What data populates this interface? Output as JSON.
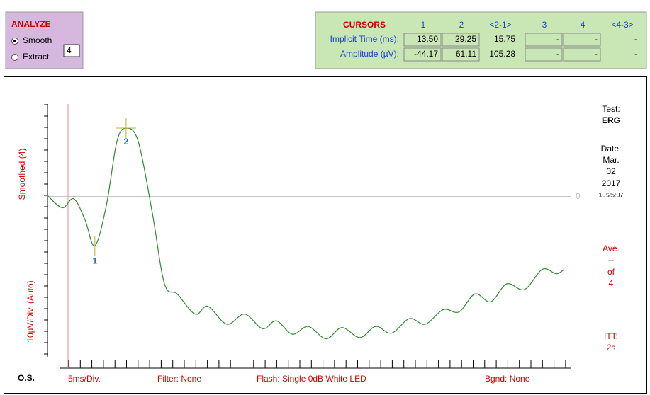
{
  "analyze": {
    "title": "ANALYZE",
    "options": [
      "Smooth",
      "Extract"
    ],
    "selected": "Smooth",
    "smooth_level": "4"
  },
  "cursors": {
    "title": "CURSORS",
    "columns": [
      "1",
      "2",
      "<2-1>",
      "3",
      "4",
      "<4-3>"
    ],
    "rows": [
      {
        "label": "Implicit Time (ms):",
        "values": [
          "13.50",
          "29.25",
          "15.75",
          "-",
          "-",
          "-"
        ]
      },
      {
        "label": "Amplitude (µV):",
        "values": [
          "-44.17",
          "61.11",
          "105.28",
          "-",
          "-",
          "-"
        ]
      }
    ]
  },
  "chart_data": {
    "type": "line",
    "y_label_top": "Smoothed (4)",
    "y_label_bottom": "10µV/Div. (Auto)",
    "x_label": "5ms/Div.",
    "eye": "O.S.",
    "filter": "Filter: None",
    "flash": "Flash: Single 0dB White LED",
    "background": "Bgnd: None",
    "info": [
      "Test:",
      "ERG",
      "Date:",
      "Mar.",
      "02",
      "2017",
      "10:25:07",
      "Ave.",
      "--",
      "of",
      "4",
      "ITT:",
      "2s"
    ],
    "cursor_labels": [
      "1",
      "2"
    ],
    "x": [
      -10.4,
      -2.9,
      2.9,
      8.6,
      13.5,
      19.3,
      24.6,
      29.3,
      35.4,
      42.5,
      48.6,
      55,
      64,
      70.4,
      80,
      89,
      98,
      105,
      113,
      121,
      130,
      138,
      147,
      155,
      163,
      172,
      180,
      189,
      197,
      205,
      213,
      221,
      230,
      239,
      246,
      250
    ],
    "values": [
      1,
      -10,
      -2,
      -21,
      -44,
      -8,
      49,
      61,
      49,
      -15,
      -78,
      -87,
      -105,
      -98,
      -114,
      -105,
      -118,
      -111,
      -123,
      -116,
      -127,
      -117,
      -126,
      -116,
      -122,
      -109,
      -114,
      -101,
      -103,
      -87,
      -94,
      -78,
      -83,
      -65,
      -69,
      -65
    ],
    "color": "#2e8b2e",
    "xlim": [
      -10,
      250
    ],
    "ylim": [
      -176,
      106
    ],
    "yticks": [
      0
    ]
  }
}
